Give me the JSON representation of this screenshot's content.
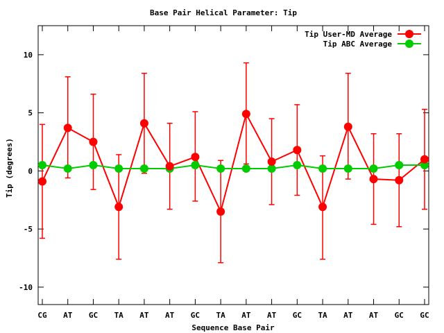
{
  "chart_data": {
    "type": "line",
    "title": "Base Pair Helical Parameter: Tip",
    "xlabel": "Sequence Base Pair",
    "ylabel": "Tip (degrees)",
    "categories": [
      "CG",
      "AT",
      "GC",
      "TA",
      "AT",
      "AT",
      "GC",
      "TA",
      "AT",
      "AT",
      "GC",
      "TA",
      "AT",
      "AT",
      "GC",
      "GC"
    ],
    "ylim": [
      -11.5,
      12.5
    ],
    "yticks": [
      -10,
      -5,
      0,
      5,
      10
    ],
    "ytick_labels": [
      "-10",
      "-5",
      "0",
      "5",
      "10"
    ],
    "grid": false,
    "legend_position": "top-right",
    "series": [
      {
        "name": "Tip User-MD Average",
        "color": "#ff0000",
        "marker": "circle",
        "values": [
          -0.9,
          3.7,
          2.5,
          -3.1,
          4.1,
          0.4,
          1.2,
          -3.5,
          4.9,
          0.8,
          1.8,
          -3.1,
          3.8,
          -0.7,
          -0.8,
          1.0
        ],
        "error_low": [
          -5.8,
          -0.6,
          -1.6,
          -7.6,
          -0.2,
          -3.3,
          -2.6,
          -7.9,
          0.6,
          -2.9,
          -2.1,
          -7.6,
          -0.7,
          -4.6,
          -4.8,
          -3.3
        ],
        "error_high": [
          4.0,
          8.1,
          6.6,
          1.4,
          8.4,
          4.1,
          5.1,
          0.9,
          9.3,
          4.5,
          5.7,
          1.3,
          8.4,
          3.2,
          3.2,
          5.3
        ]
      },
      {
        "name": "Tip ABC Average",
        "color": "#00cc00",
        "marker": "circle",
        "values": [
          0.5,
          0.2,
          0.5,
          0.2,
          0.2,
          0.2,
          0.5,
          0.2,
          0.2,
          0.2,
          0.5,
          0.2,
          0.2,
          0.2,
          0.5,
          0.5
        ]
      }
    ]
  }
}
